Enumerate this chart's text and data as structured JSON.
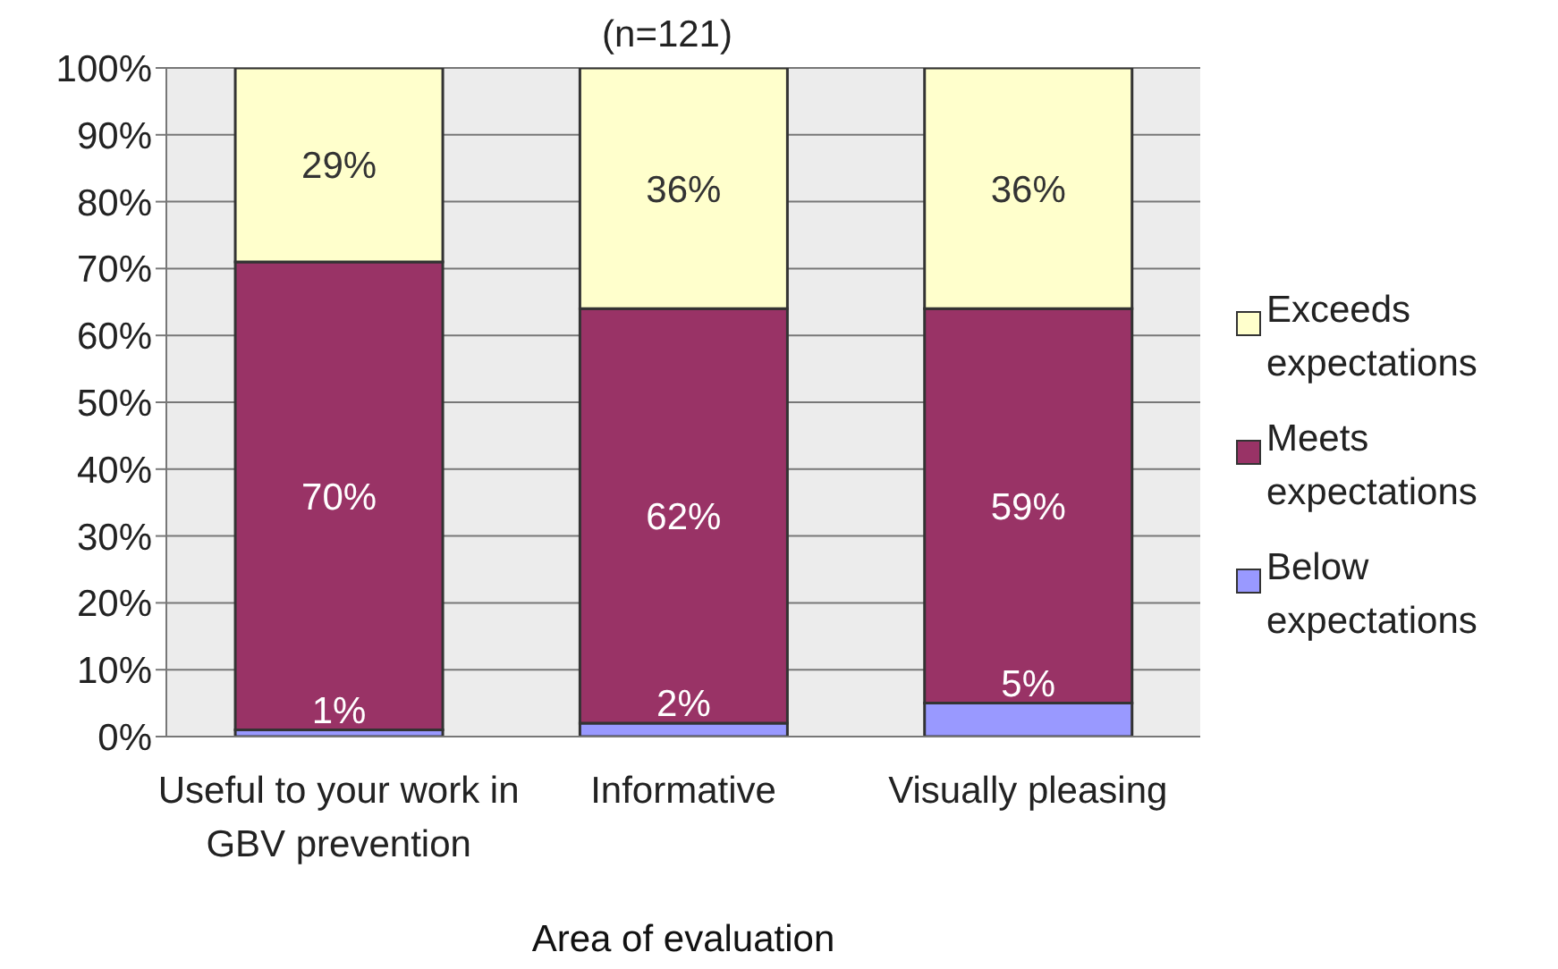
{
  "chart_data": {
    "type": "bar",
    "stacked": true,
    "subtitle": "(n=121)",
    "xlabel": "Area of evaluation",
    "categories": [
      "Useful to your work in GBV prevention",
      "Informative",
      "Visually pleasing"
    ],
    "series": [
      {
        "name": "Below expectations",
        "color": "#9999ff",
        "values": [
          1,
          2,
          5
        ],
        "value_labels": [
          "1%",
          "2%",
          "5%"
        ]
      },
      {
        "name": "Meets expectations",
        "color": "#993366",
        "values": [
          70,
          62,
          59
        ],
        "value_labels": [
          "70%",
          "62%",
          "59%"
        ]
      },
      {
        "name": "Exceeds expectations",
        "color": "#ffffcc",
        "values": [
          29,
          36,
          36
        ],
        "value_labels": [
          "29%",
          "36%",
          "36%"
        ]
      }
    ],
    "ylim": [
      0,
      100
    ],
    "yticks": [
      {
        "value": 0,
        "label": "0%"
      },
      {
        "value": 10,
        "label": "10%"
      },
      {
        "value": 20,
        "label": "20%"
      },
      {
        "value": 30,
        "label": "30%"
      },
      {
        "value": 40,
        "label": "40%"
      },
      {
        "value": 50,
        "label": "50%"
      },
      {
        "value": 60,
        "label": "60%"
      },
      {
        "value": 70,
        "label": "70%"
      },
      {
        "value": 80,
        "label": "80%"
      },
      {
        "value": 90,
        "label": "90%"
      },
      {
        "value": 100,
        "label": "100%"
      }
    ],
    "grid": "y",
    "legend": "right"
  }
}
